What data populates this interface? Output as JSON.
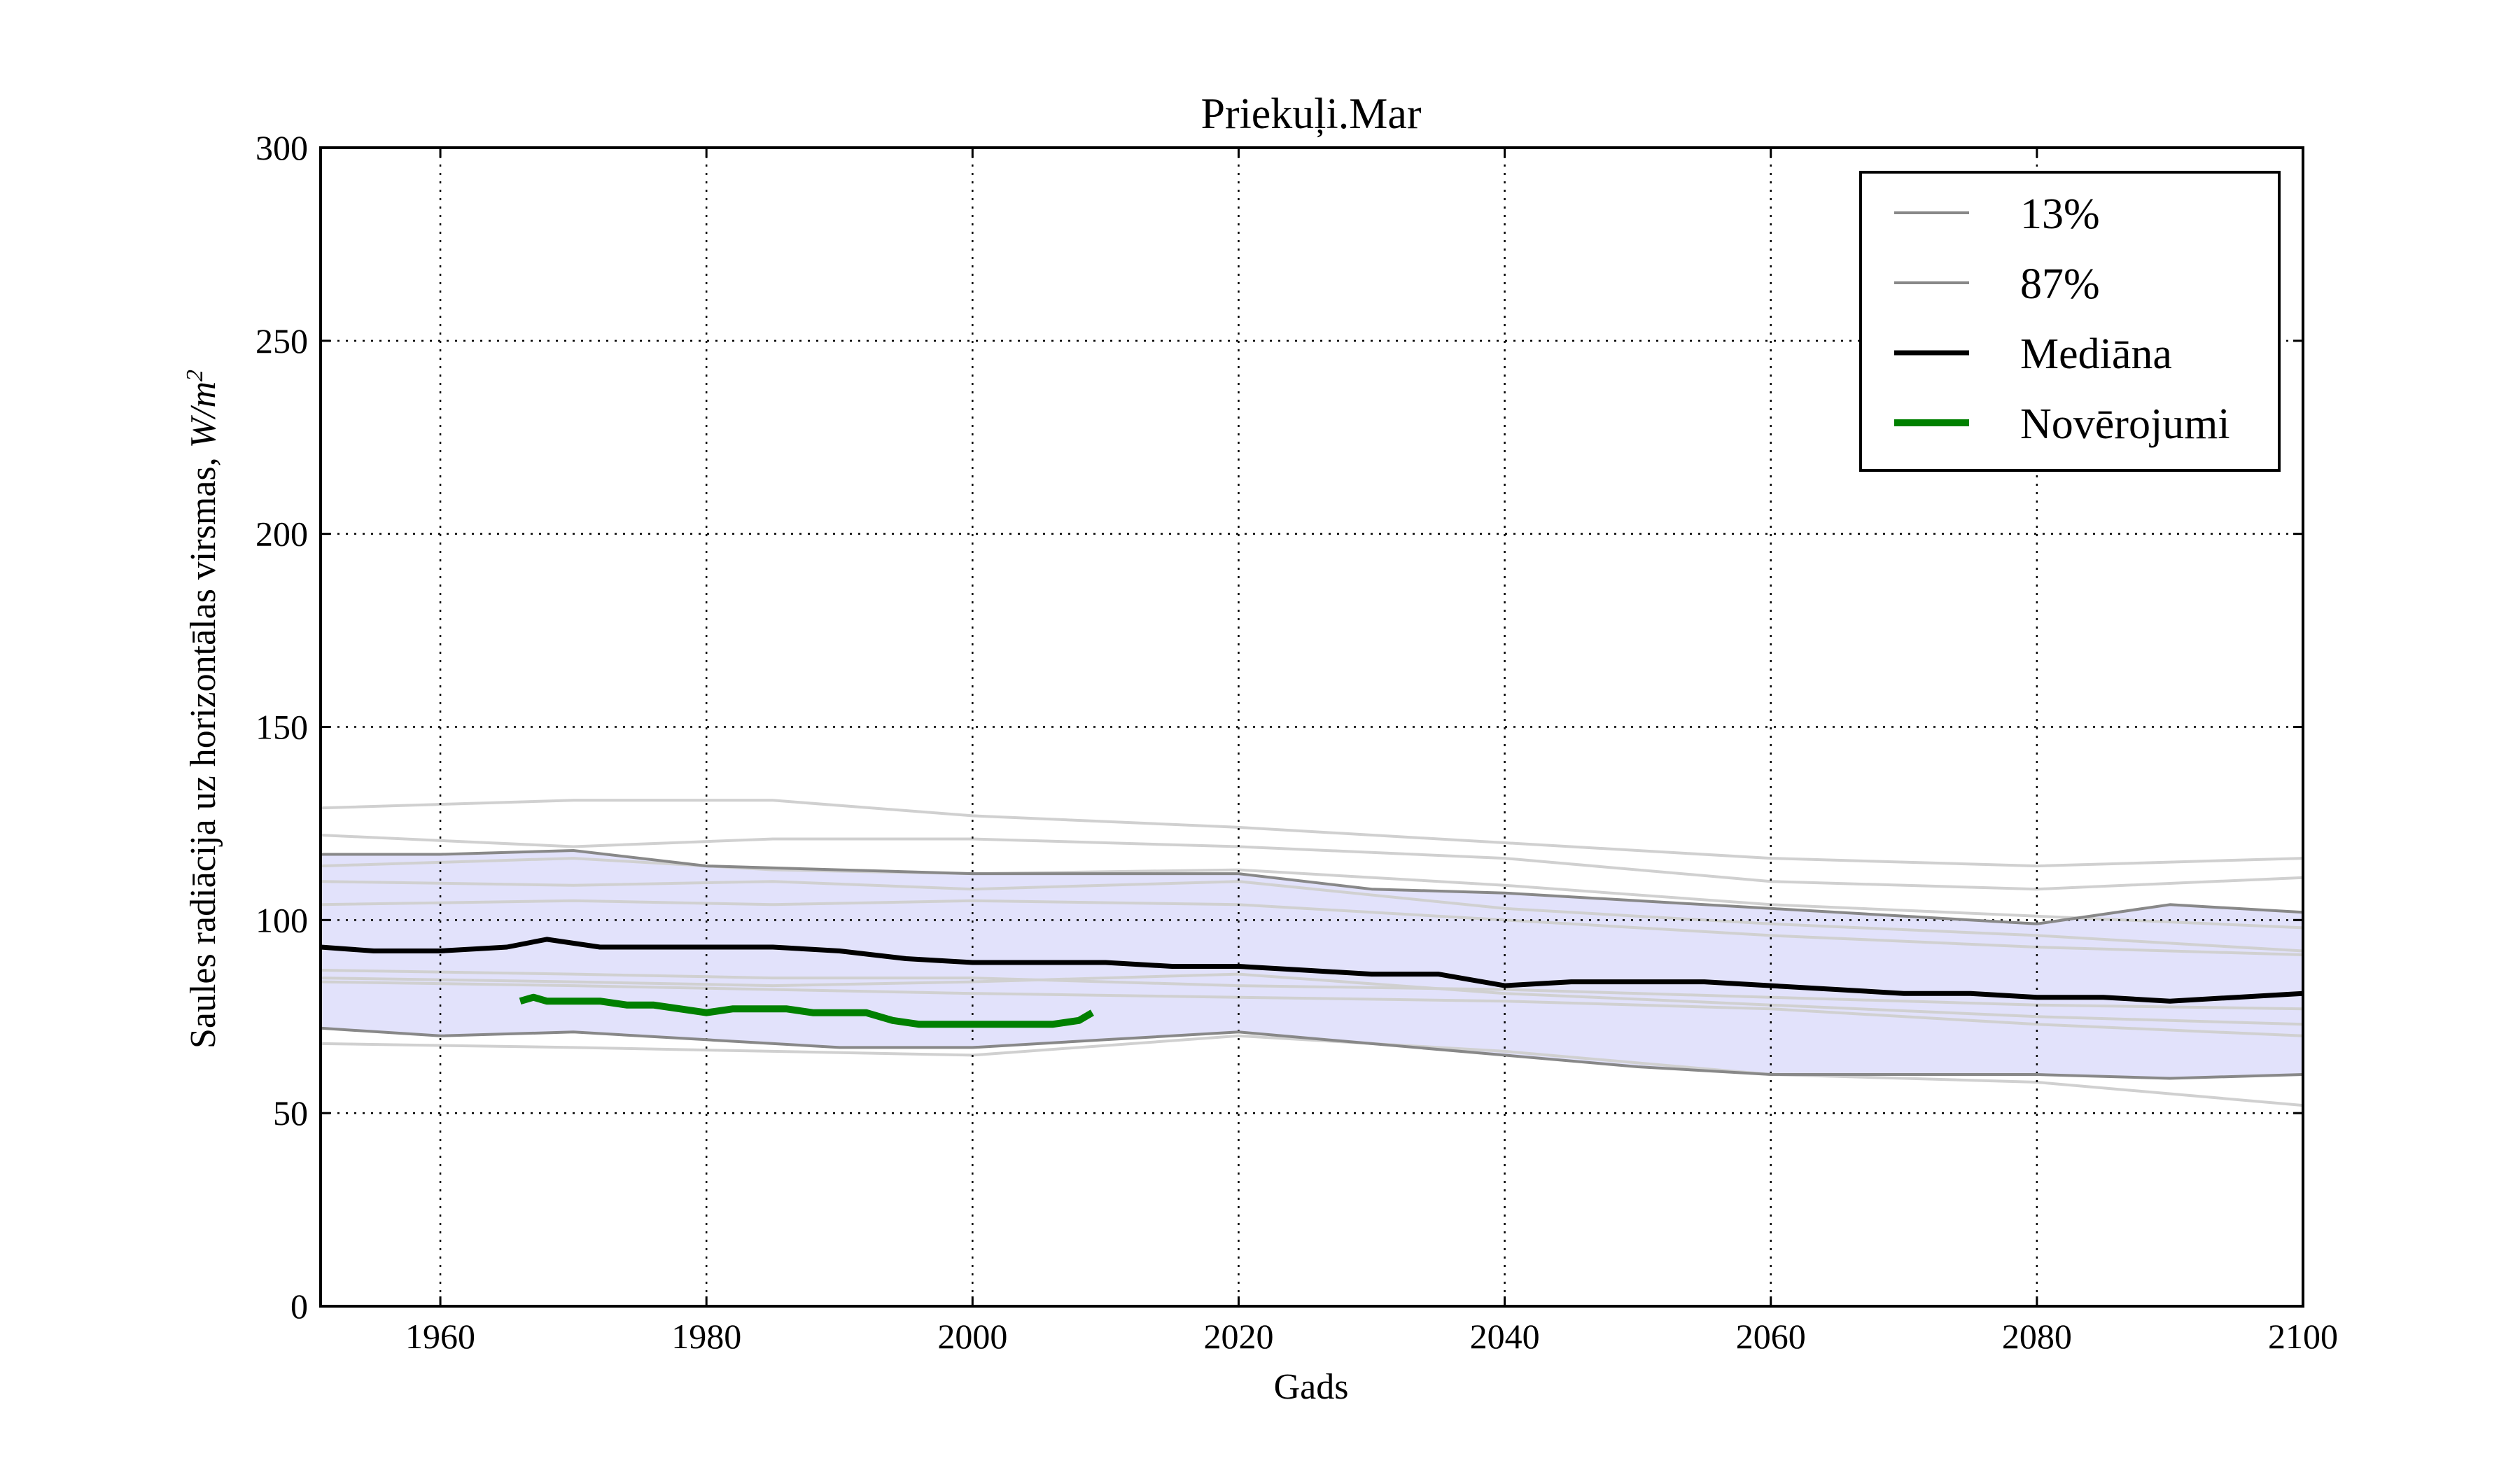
{
  "chart_data": {
    "type": "line",
    "title": "Priekuļi.Mar",
    "xlabel": "Gads",
    "ylabel": "Saules radiācija uz horizontālas virsmas, W/m²",
    "ylabel_text": "Saules radiācija uz horizontālas virsmas, ",
    "ylabel_unit_base": "W/m",
    "ylabel_unit_exp": "2",
    "xlim": [
      1951,
      2100
    ],
    "ylim": [
      0,
      300
    ],
    "xticks": [
      1960,
      1980,
      2000,
      2020,
      2040,
      2060,
      2080,
      2100
    ],
    "yticks": [
      0,
      50,
      100,
      150,
      200,
      250,
      300
    ],
    "grid": true,
    "legend_position": "top-right",
    "band": {
      "color": "#e2e2fb",
      "lower_series": "13%",
      "upper_series": "87%"
    },
    "series": [
      {
        "name": "13%",
        "color": "#888888",
        "x": [
          1951,
          1960,
          1970,
          1980,
          1990,
          2000,
          2010,
          2020,
          2030,
          2040,
          2050,
          2060,
          2070,
          2080,
          2090,
          2100
        ],
        "y": [
          72,
          70,
          71,
          69,
          67,
          67,
          69,
          71,
          68,
          65,
          62,
          60,
          60,
          60,
          59,
          60
        ]
      },
      {
        "name": "87%",
        "color": "#888888",
        "x": [
          1951,
          1960,
          1970,
          1980,
          1990,
          2000,
          2010,
          2020,
          2030,
          2040,
          2050,
          2060,
          2070,
          2080,
          2090,
          2100
        ],
        "y": [
          117,
          117,
          118,
          114,
          113,
          112,
          112,
          112,
          108,
          107,
          105,
          103,
          101,
          99,
          104,
          102
        ]
      },
      {
        "name": "Mediāna",
        "color": "#000000",
        "x": [
          1951,
          1955,
          1960,
          1965,
          1968,
          1972,
          1975,
          1980,
          1985,
          1990,
          1995,
          2000,
          2005,
          2010,
          2015,
          2020,
          2025,
          2030,
          2035,
          2040,
          2045,
          2050,
          2055,
          2060,
          2065,
          2070,
          2075,
          2080,
          2085,
          2090,
          2095,
          2100
        ],
        "y": [
          93,
          92,
          92,
          93,
          95,
          93,
          93,
          93,
          93,
          92,
          90,
          89,
          89,
          89,
          88,
          88,
          87,
          86,
          86,
          83,
          84,
          84,
          84,
          83,
          82,
          81,
          81,
          80,
          80,
          79,
          80,
          81
        ]
      },
      {
        "name": "Novērojumi",
        "color": "#008000",
        "x": [
          1966,
          1967,
          1968,
          1970,
          1972,
          1974,
          1976,
          1978,
          1980,
          1982,
          1984,
          1986,
          1988,
          1990,
          1992,
          1994,
          1996,
          1998,
          2000,
          2002,
          2004,
          2006,
          2008,
          2009
        ],
        "y": [
          79,
          80,
          79,
          79,
          79,
          78,
          78,
          77,
          76,
          77,
          77,
          77,
          76,
          76,
          76,
          74,
          73,
          73,
          73,
          73,
          73,
          73,
          74,
          76
        ]
      }
    ],
    "ensemble_members": [
      {
        "color": "#d0d0d0",
        "x": [
          1951,
          1970,
          1985,
          2000,
          2020,
          2040,
          2060,
          2080,
          2100
        ],
        "y": [
          129,
          131,
          131,
          127,
          124,
          120,
          116,
          114,
          116
        ]
      },
      {
        "color": "#d0d0d0",
        "x": [
          1951,
          1970,
          1985,
          2000,
          2020,
          2040,
          2060,
          2080,
          2100
        ],
        "y": [
          122,
          119,
          121,
          121,
          119,
          116,
          110,
          108,
          111
        ]
      },
      {
        "color": "#d0d0d0",
        "x": [
          1951,
          1970,
          1985,
          2000,
          2020,
          2040,
          2060,
          2080,
          2100
        ],
        "y": [
          114,
          116,
          113,
          112,
          113,
          109,
          104,
          101,
          98
        ]
      },
      {
        "color": "#d0d0d0",
        "x": [
          1951,
          1970,
          1985,
          2000,
          2020,
          2040,
          2060,
          2080,
          2100
        ],
        "y": [
          110,
          109,
          110,
          108,
          110,
          103,
          99,
          96,
          92
        ]
      },
      {
        "color": "#d0d0d0",
        "x": [
          1951,
          1970,
          1985,
          2000,
          2020,
          2040,
          2060,
          2080,
          2100
        ],
        "y": [
          104,
          105,
          104,
          105,
          104,
          100,
          96,
          93,
          91
        ]
      },
      {
        "color": "#d0d0d0",
        "x": [
          1951,
          1970,
          1985,
          2000,
          2020,
          2040,
          2060,
          2080,
          2100
        ],
        "y": [
          87,
          86,
          85,
          85,
          83,
          82,
          80,
          78,
          77
        ]
      },
      {
        "color": "#d0d0d0",
        "x": [
          1951,
          1970,
          1985,
          2000,
          2020,
          2040,
          2060,
          2080,
          2100
        ],
        "y": [
          85,
          84,
          83,
          84,
          86,
          81,
          78,
          75,
          73
        ]
      },
      {
        "color": "#d0d0d0",
        "x": [
          1951,
          1970,
          1985,
          2000,
          2020,
          2040,
          2060,
          2080,
          2100
        ],
        "y": [
          84,
          83,
          82,
          81,
          80,
          79,
          77,
          73,
          70
        ]
      },
      {
        "color": "#d0d0d0",
        "x": [
          1951,
          1970,
          1985,
          2000,
          2020,
          2040,
          2060,
          2080,
          2100
        ],
        "y": [
          68,
          67,
          66,
          65,
          70,
          66,
          60,
          58,
          52
        ]
      }
    ]
  }
}
